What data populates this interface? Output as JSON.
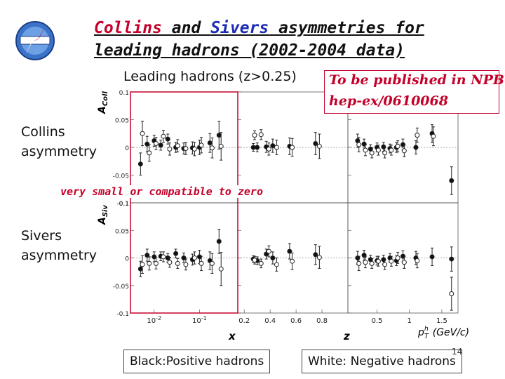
{
  "slide": {
    "title_collins": "Collins",
    "title_and": " and ",
    "title_sivers": "Sivers",
    "title_rest": " asymmetries for leading hadrons (2002-2004 data)",
    "subtitle": "Leading hadrons (z>0.25)",
    "pub_line1": "To be published in NPB",
    "pub_line2": "hep-ex/0610068",
    "collins_label_1": "Collins",
    "collins_label_2": "asymmetry",
    "sivers_label_1": "Sivers",
    "sivers_label_2": "asymmetry",
    "note": "very small or compatible to zero",
    "legend_positive": "Black:Positive hadrons",
    "legend_negative": "White: Negative hadrons",
    "page_number": "14"
  },
  "colors": {
    "red": "#c4002a",
    "blue": "#1c2bb5",
    "positive_marker": "#111111",
    "negative_marker": "#ffffff"
  },
  "chart_data": [
    {
      "type": "scatter",
      "panel": "collins",
      "ylabel": "A_Coll",
      "ylim": [
        -0.1,
        0.1
      ],
      "yticks": [
        "0.1",
        "0.05",
        "0",
        "-0.05",
        "-0.1"
      ],
      "subpanels": [
        {
          "variable": "x",
          "scale": "log",
          "xlim": [
            0.003,
            0.7
          ],
          "xticks": [
            "10^-2",
            "10^-1"
          ],
          "series": [
            {
              "name": "Positive hadrons",
              "points": [
                {
                  "x": 0.005,
                  "y": -0.03,
                  "e": 0.02
                },
                {
                  "x": 0.007,
                  "y": 0.006,
                  "e": 0.014
                },
                {
                  "x": 0.01,
                  "y": 0.012,
                  "e": 0.01
                },
                {
                  "x": 0.014,
                  "y": 0.004,
                  "e": 0.009
                },
                {
                  "x": 0.02,
                  "y": 0.015,
                  "e": 0.009
                },
                {
                  "x": 0.03,
                  "y": 0.0,
                  "e": 0.009
                },
                {
                  "x": 0.045,
                  "y": -0.002,
                  "e": 0.01
                },
                {
                  "x": 0.07,
                  "y": -0.001,
                  "e": 0.011
                },
                {
                  "x": 0.1,
                  "y": 0.0,
                  "e": 0.013
                },
                {
                  "x": 0.17,
                  "y": 0.008,
                  "e": 0.017
                },
                {
                  "x": 0.27,
                  "y": 0.022,
                  "e": 0.025
                }
              ]
            },
            {
              "name": "Negative hadrons",
              "points": [
                {
                  "x": 0.0055,
                  "y": 0.025,
                  "e": 0.022
                },
                {
                  "x": 0.0078,
                  "y": -0.01,
                  "e": 0.015
                },
                {
                  "x": 0.011,
                  "y": 0.007,
                  "e": 0.011
                },
                {
                  "x": 0.016,
                  "y": 0.02,
                  "e": 0.011
                },
                {
                  "x": 0.022,
                  "y": -0.003,
                  "e": 0.011
                },
                {
                  "x": 0.033,
                  "y": 0.003,
                  "e": 0.011
                },
                {
                  "x": 0.05,
                  "y": -0.002,
                  "e": 0.011
                },
                {
                  "x": 0.078,
                  "y": -0.003,
                  "e": 0.012
                },
                {
                  "x": 0.11,
                  "y": 0.004,
                  "e": 0.014
                },
                {
                  "x": 0.19,
                  "y": -0.001,
                  "e": 0.018
                },
                {
                  "x": 0.3,
                  "y": 0.002,
                  "e": 0.025
                }
              ]
            }
          ]
        },
        {
          "variable": "z",
          "scale": "linear",
          "xlim": [
            0.15,
            1.0
          ],
          "xticks": [
            "0.2",
            "0.4",
            "0.6",
            "0.8"
          ],
          "series": [
            {
              "name": "Positive hadrons",
              "points": [
                {
                  "x": 0.27,
                  "y": 0.0,
                  "e": 0.007
                },
                {
                  "x": 0.3,
                  "y": 0.0,
                  "e": 0.008
                },
                {
                  "x": 0.37,
                  "y": 0.001,
                  "e": 0.01
                },
                {
                  "x": 0.42,
                  "y": 0.003,
                  "e": 0.012
                },
                {
                  "x": 0.55,
                  "y": 0.002,
                  "e": 0.015
                },
                {
                  "x": 0.75,
                  "y": 0.007,
                  "e": 0.02
                }
              ]
            },
            {
              "name": "Negative hadrons",
              "points": [
                {
                  "x": 0.28,
                  "y": 0.022,
                  "e": 0.008
                },
                {
                  "x": 0.33,
                  "y": 0.023,
                  "e": 0.009
                },
                {
                  "x": 0.39,
                  "y": -0.003,
                  "e": 0.011
                },
                {
                  "x": 0.45,
                  "y": 0.0,
                  "e": 0.013
                },
                {
                  "x": 0.57,
                  "y": 0.0,
                  "e": 0.016
                },
                {
                  "x": 0.78,
                  "y": 0.002,
                  "e": 0.022
                }
              ]
            }
          ]
        },
        {
          "variable": "p_T^h (GeV/c)",
          "scale": "linear",
          "xlim": [
            0.05,
            1.75
          ],
          "xticks": [
            "0.5",
            "1",
            "1.5"
          ],
          "series": [
            {
              "name": "Positive hadrons",
              "points": [
                {
                  "x": 0.2,
                  "y": 0.012,
                  "e": 0.012
                },
                {
                  "x": 0.3,
                  "y": 0.006,
                  "e": 0.009
                },
                {
                  "x": 0.4,
                  "y": -0.003,
                  "e": 0.008
                },
                {
                  "x": 0.5,
                  "y": 0.0,
                  "e": 0.008
                },
                {
                  "x": 0.6,
                  "y": 0.001,
                  "e": 0.008
                },
                {
                  "x": 0.7,
                  "y": -0.002,
                  "e": 0.008
                },
                {
                  "x": 0.8,
                  "y": 0.0,
                  "e": 0.009
                },
                {
                  "x": 0.9,
                  "y": 0.005,
                  "e": 0.01
                },
                {
                  "x": 1.1,
                  "y": 0.0,
                  "e": 0.012
                },
                {
                  "x": 1.35,
                  "y": 0.025,
                  "e": 0.016
                },
                {
                  "x": 1.65,
                  "y": -0.06,
                  "e": 0.025
                }
              ]
            },
            {
              "name": "Negative hadrons",
              "points": [
                {
                  "x": 0.22,
                  "y": 0.005,
                  "e": 0.013
                },
                {
                  "x": 0.32,
                  "y": -0.005,
                  "e": 0.01
                },
                {
                  "x": 0.42,
                  "y": -0.01,
                  "e": 0.009
                },
                {
                  "x": 0.52,
                  "y": -0.005,
                  "e": 0.009
                },
                {
                  "x": 0.62,
                  "y": -0.01,
                  "e": 0.009
                },
                {
                  "x": 0.72,
                  "y": -0.005,
                  "e": 0.009
                },
                {
                  "x": 0.82,
                  "y": 0.002,
                  "e": 0.01
                },
                {
                  "x": 0.92,
                  "y": -0.006,
                  "e": 0.011
                },
                {
                  "x": 1.12,
                  "y": 0.022,
                  "e": 0.013
                },
                {
                  "x": 1.37,
                  "y": 0.02,
                  "e": 0.017
                }
              ]
            }
          ]
        }
      ]
    },
    {
      "type": "scatter",
      "panel": "sivers",
      "ylabel": "A_Siv",
      "ylim": [
        -0.1,
        0.1
      ],
      "yticks": [
        "0.1",
        "0.05",
        "0",
        "-0.05",
        "-0.1"
      ],
      "subpanels": [
        {
          "variable": "x",
          "scale": "log",
          "xlim": [
            0.003,
            0.7
          ],
          "xticks": [
            "10^-2",
            "10^-1"
          ],
          "series": [
            {
              "name": "Positive hadrons",
              "points": [
                {
                  "x": 0.005,
                  "y": -0.02,
                  "e": 0.014
                },
                {
                  "x": 0.007,
                  "y": 0.005,
                  "e": 0.011
                },
                {
                  "x": 0.01,
                  "y": 0.002,
                  "e": 0.009
                },
                {
                  "x": 0.014,
                  "y": 0.003,
                  "e": 0.008
                },
                {
                  "x": 0.02,
                  "y": 0.0,
                  "e": 0.008
                },
                {
                  "x": 0.03,
                  "y": 0.008,
                  "e": 0.008
                },
                {
                  "x": 0.045,
                  "y": 0.0,
                  "e": 0.009
                },
                {
                  "x": 0.07,
                  "y": -0.003,
                  "e": 0.01
                },
                {
                  "x": 0.1,
                  "y": 0.002,
                  "e": 0.012
                },
                {
                  "x": 0.17,
                  "y": -0.005,
                  "e": 0.016
                },
                {
                  "x": 0.27,
                  "y": 0.03,
                  "e": 0.022
                }
              ]
            },
            {
              "name": "Negative hadrons",
              "points": [
                {
                  "x": 0.0055,
                  "y": -0.012,
                  "e": 0.016
                },
                {
                  "x": 0.0078,
                  "y": -0.01,
                  "e": 0.012
                },
                {
                  "x": 0.011,
                  "y": -0.01,
                  "e": 0.01
                },
                {
                  "x": 0.016,
                  "y": 0.002,
                  "e": 0.009
                },
                {
                  "x": 0.022,
                  "y": -0.008,
                  "e": 0.009
                },
                {
                  "x": 0.033,
                  "y": -0.01,
                  "e": 0.009
                },
                {
                  "x": 0.05,
                  "y": -0.012,
                  "e": 0.01
                },
                {
                  "x": 0.078,
                  "y": 0.0,
                  "e": 0.011
                },
                {
                  "x": 0.11,
                  "y": -0.01,
                  "e": 0.013
                },
                {
                  "x": 0.19,
                  "y": -0.01,
                  "e": 0.018
                },
                {
                  "x": 0.3,
                  "y": -0.02,
                  "e": 0.03
                }
              ]
            }
          ]
        },
        {
          "variable": "z",
          "scale": "linear",
          "xlim": [
            0.15,
            1.0
          ],
          "xticks": [
            "0.2",
            "0.4",
            "0.6",
            "0.8"
          ],
          "series": [
            {
              "name": "Positive hadrons",
              "points": [
                {
                  "x": 0.27,
                  "y": -0.002,
                  "e": 0.006
                },
                {
                  "x": 0.3,
                  "y": -0.005,
                  "e": 0.007
                },
                {
                  "x": 0.37,
                  "y": 0.007,
                  "e": 0.009
                },
                {
                  "x": 0.42,
                  "y": 0.0,
                  "e": 0.011
                },
                {
                  "x": 0.55,
                  "y": 0.012,
                  "e": 0.014
                },
                {
                  "x": 0.75,
                  "y": 0.006,
                  "e": 0.018
                }
              ]
            },
            {
              "name": "Negative hadrons",
              "points": [
                {
                  "x": 0.28,
                  "y": -0.004,
                  "e": 0.007
                },
                {
                  "x": 0.33,
                  "y": -0.01,
                  "e": 0.008
                },
                {
                  "x": 0.39,
                  "y": 0.012,
                  "e": 0.01
                },
                {
                  "x": 0.45,
                  "y": -0.012,
                  "e": 0.012
                },
                {
                  "x": 0.57,
                  "y": -0.006,
                  "e": 0.015
                },
                {
                  "x": 0.78,
                  "y": 0.001,
                  "e": 0.02
                }
              ]
            }
          ]
        },
        {
          "variable": "p_T^h (GeV/c)",
          "scale": "linear",
          "xlim": [
            0.05,
            1.75
          ],
          "xticks": [
            "0.5",
            "1",
            "1.5"
          ],
          "series": [
            {
              "name": "Positive hadrons",
              "points": [
                {
                  "x": 0.2,
                  "y": 0.0,
                  "e": 0.012
                },
                {
                  "x": 0.3,
                  "y": 0.005,
                  "e": 0.009
                },
                {
                  "x": 0.4,
                  "y": -0.003,
                  "e": 0.008
                },
                {
                  "x": 0.5,
                  "y": -0.005,
                  "e": 0.008
                },
                {
                  "x": 0.6,
                  "y": -0.003,
                  "e": 0.008
                },
                {
                  "x": 0.7,
                  "y": 0.0,
                  "e": 0.008
                },
                {
                  "x": 0.8,
                  "y": -0.005,
                  "e": 0.009
                },
                {
                  "x": 0.9,
                  "y": 0.003,
                  "e": 0.01
                },
                {
                  "x": 1.1,
                  "y": 0.0,
                  "e": 0.012
                },
                {
                  "x": 1.35,
                  "y": 0.002,
                  "e": 0.016
                },
                {
                  "x": 1.65,
                  "y": -0.002,
                  "e": 0.022
                }
              ]
            },
            {
              "name": "Negative hadrons",
              "points": [
                {
                  "x": 0.22,
                  "y": -0.01,
                  "e": 0.013
                },
                {
                  "x": 0.32,
                  "y": -0.008,
                  "e": 0.01
                },
                {
                  "x": 0.42,
                  "y": -0.01,
                  "e": 0.009
                },
                {
                  "x": 0.52,
                  "y": -0.006,
                  "e": 0.009
                },
                {
                  "x": 0.62,
                  "y": -0.012,
                  "e": 0.009
                },
                {
                  "x": 0.72,
                  "y": -0.006,
                  "e": 0.009
                },
                {
                  "x": 0.82,
                  "y": 0.0,
                  "e": 0.01
                },
                {
                  "x": 0.92,
                  "y": -0.008,
                  "e": 0.011
                },
                {
                  "x": 1.12,
                  "y": -0.005,
                  "e": 0.013
                },
                {
                  "x": 1.65,
                  "y": -0.065,
                  "e": 0.03
                }
              ]
            }
          ]
        }
      ]
    }
  ]
}
